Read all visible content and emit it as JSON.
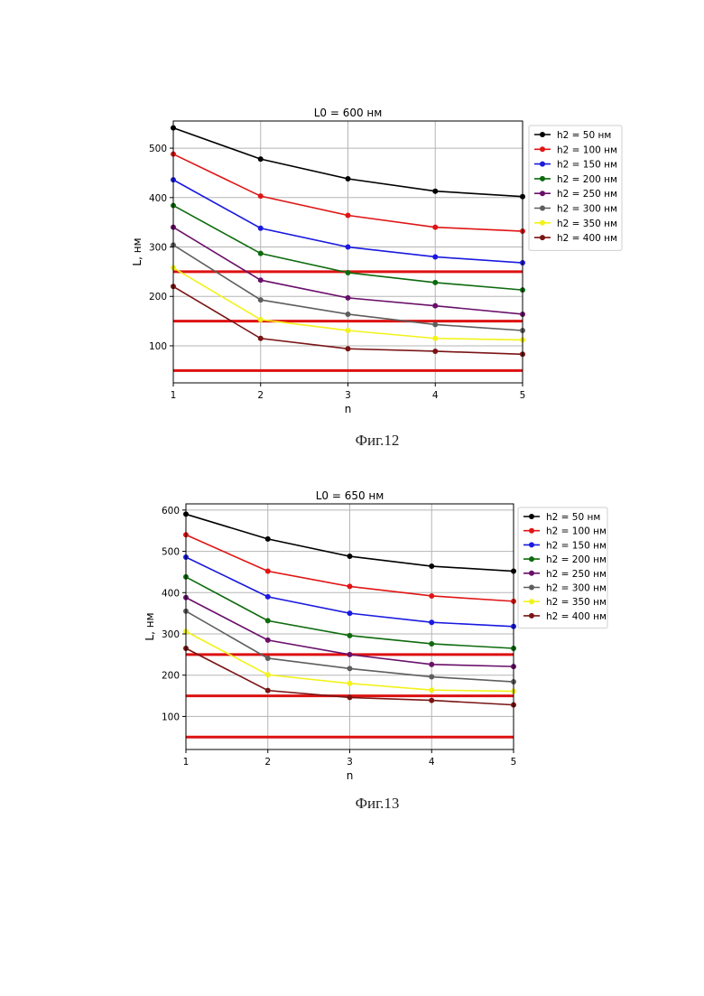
{
  "chart_data": [
    {
      "type": "line",
      "title": "L0 = 600 нм",
      "xlabel": "n",
      "ylabel": "L, нм",
      "caption": "Фиг.12",
      "x": [
        1,
        2,
        3,
        4,
        5
      ],
      "xticks": [
        "1",
        "2",
        "3",
        "4",
        "5"
      ],
      "yticks": [
        "100",
        "200",
        "300",
        "400",
        "500"
      ],
      "xlim": [
        1,
        5
      ],
      "ylim": [
        25,
        555
      ],
      "grid": true,
      "legend_position": "outside-top-right",
      "reference_lines": [
        50,
        150,
        250
      ],
      "reference_color": "#dd1111",
      "series": [
        {
          "name": "h2 = 50 нм",
          "color": "#000000",
          "values": [
            541,
            478,
            438,
            413,
            402
          ]
        },
        {
          "name": "h2 = 100 нм",
          "color": "#e01515",
          "values": [
            488,
            403,
            364,
            340,
            332
          ]
        },
        {
          "name": "h2 = 150 нм",
          "color": "#1a1ae0",
          "values": [
            436,
            338,
            300,
            280,
            268
          ]
        },
        {
          "name": "h2 = 200 нм",
          "color": "#0d6b0d",
          "values": [
            384,
            287,
            248,
            228,
            213
          ]
        },
        {
          "name": "h2 = 250 нм",
          "color": "#6a0f6a",
          "values": [
            340,
            233,
            197,
            181,
            164
          ]
        },
        {
          "name": "h2 = 300 нм",
          "color": "#5e5e5e",
          "values": [
            304,
            193,
            164,
            143,
            131
          ]
        },
        {
          "name": "h2 = 350 нм",
          "color": "#f2f21a",
          "values": [
            258,
            153,
            131,
            115,
            112
          ]
        },
        {
          "name": "h2 = 400 нм",
          "color": "#7a1414",
          "values": [
            220,
            115,
            94,
            89,
            83
          ]
        }
      ]
    },
    {
      "type": "line",
      "title": "L0 = 650 нм",
      "xlabel": "n",
      "ylabel": "L, нм",
      "caption": "Фиг.13",
      "x": [
        1,
        2,
        3,
        4,
        5
      ],
      "xticks": [
        "1",
        "2",
        "3",
        "4",
        "5"
      ],
      "yticks": [
        "100",
        "200",
        "300",
        "400",
        "500",
        "600"
      ],
      "xlim": [
        1,
        5
      ],
      "ylim": [
        20,
        615
      ],
      "grid": true,
      "legend_position": "outside-top-right",
      "reference_lines": [
        50,
        150,
        250
      ],
      "reference_color": "#dd1111",
      "series": [
        {
          "name": "h2 = 50 нм",
          "color": "#000000",
          "values": [
            590,
            530,
            488,
            464,
            452
          ]
        },
        {
          "name": "h2 = 100 нм",
          "color": "#e01515",
          "values": [
            540,
            452,
            415,
            392,
            379
          ]
        },
        {
          "name": "h2 = 150 нм",
          "color": "#1a1ae0",
          "values": [
            486,
            390,
            350,
            328,
            318
          ]
        },
        {
          "name": "h2 = 200 нм",
          "color": "#0d6b0d",
          "values": [
            438,
            332,
            296,
            276,
            265
          ]
        },
        {
          "name": "h2 = 250 нм",
          "color": "#6a0f6a",
          "values": [
            388,
            285,
            250,
            226,
            221
          ]
        },
        {
          "name": "h2 = 300 нм",
          "color": "#5e5e5e",
          "values": [
            355,
            241,
            216,
            196,
            184
          ]
        },
        {
          "name": "h2 = 350 нм",
          "color": "#f2f21a",
          "values": [
            306,
            201,
            180,
            164,
            161
          ]
        },
        {
          "name": "h2 = 400 нм",
          "color": "#7a1414",
          "values": [
            265,
            163,
            146,
            139,
            128
          ]
        }
      ]
    }
  ]
}
